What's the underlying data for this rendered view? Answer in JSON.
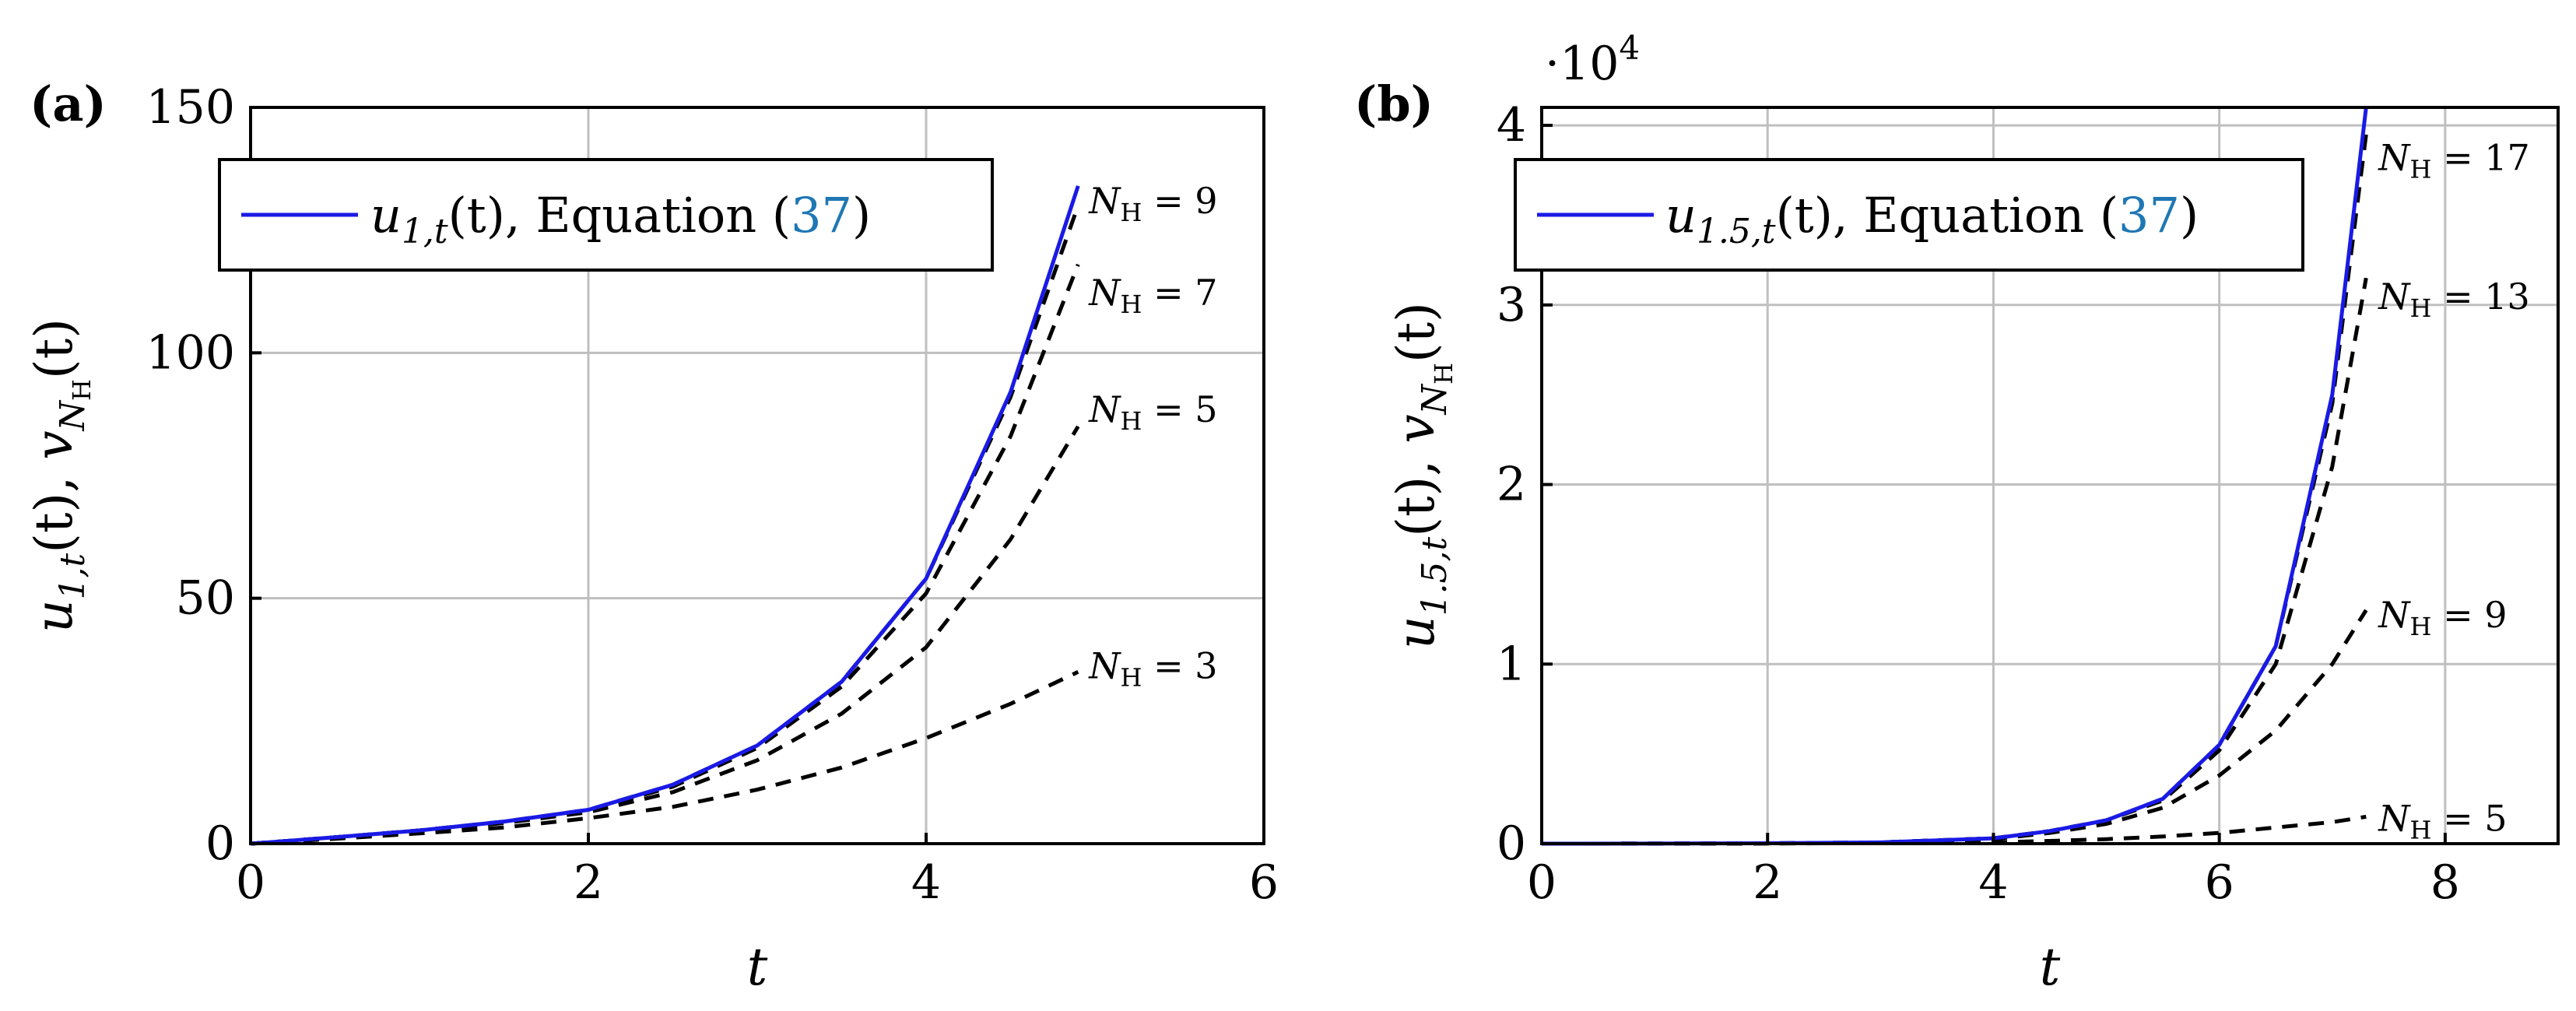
{
  "chart_data": [
    {
      "type": "line",
      "panel_label": "(a)",
      "xlabel": "t",
      "ylabel": "u_{1,t}(t), v_{N_H}(t)",
      "ylabel_main": "u",
      "ylabel_main_sub": "1,t",
      "ylabel_rest": "(t), ",
      "ylabel_second": "v",
      "ylabel_second_sub": "N",
      "ylabel_second_subsub": "H",
      "ylabel_tail": "(t)",
      "xlim": [
        0,
        6
      ],
      "ylim": [
        0,
        150
      ],
      "xticks": [
        "0",
        "2",
        "4",
        "6"
      ],
      "yticks": [
        "0",
        "50",
        "100",
        "150"
      ],
      "grid": true,
      "exponent_label": "",
      "legend": {
        "position": "top-left",
        "entry_main": "u",
        "entry_sub": "1,t",
        "entry_rest": "(t), Equation (",
        "entry_ref": "37",
        "entry_close": ")"
      },
      "series": [
        {
          "name": "u_{1,t}(t), Equation (37)",
          "style": "solid-blue",
          "x": [
            0,
            0.5,
            1,
            1.5,
            2,
            2.5,
            3,
            3.5,
            4,
            4.5,
            4.9
          ],
          "y": [
            0,
            1.3,
            2.7,
            4.5,
            6.9,
            12,
            20,
            33,
            54,
            92,
            134
          ]
        },
        {
          "name": "N_H = 9",
          "style": "dashed",
          "label": "N_H = 9",
          "label_nh": "9",
          "x": [
            0,
            0.5,
            1,
            1.5,
            2,
            2.5,
            3,
            3.5,
            4,
            4.5,
            4.9
          ],
          "y": [
            0,
            1.3,
            2.7,
            4.5,
            6.9,
            12,
            20,
            33,
            54,
            91,
            130
          ]
        },
        {
          "name": "N_H = 7",
          "style": "dashed",
          "label": "N_H = 7",
          "label_nh": "7",
          "x": [
            0,
            0.5,
            1,
            1.5,
            2,
            2.5,
            3,
            3.5,
            4,
            4.5,
            4.9
          ],
          "y": [
            0,
            1.3,
            2.7,
            4.4,
            6.8,
            11.6,
            19.5,
            32,
            51,
            83,
            118
          ]
        },
        {
          "name": "N_H = 5",
          "style": "dashed",
          "label": "N_H = 5",
          "label_nh": "5",
          "x": [
            0,
            0.5,
            1,
            1.5,
            2,
            2.5,
            3,
            3.5,
            4,
            4.5,
            4.9
          ],
          "y": [
            0,
            1.2,
            2.5,
            4.2,
            6.4,
            10.5,
            17,
            26.5,
            40,
            62,
            85
          ]
        },
        {
          "name": "N_H = 3",
          "style": "dashed",
          "label": "N_H = 3",
          "label_nh": "3",
          "x": [
            0,
            0.5,
            1,
            1.5,
            2,
            2.5,
            3,
            3.5,
            4,
            4.5,
            4.9
          ],
          "y": [
            0,
            1.0,
            2.1,
            3.3,
            5.2,
            7.5,
            11,
            15.5,
            21.5,
            28.5,
            35
          ]
        }
      ]
    },
    {
      "type": "line",
      "panel_label": "(b)",
      "xlabel": "t",
      "ylabel": "u_{1.5,t}(t), v_{N_H}(t)",
      "ylabel_main": "u",
      "ylabel_main_sub": "1.5,t",
      "ylabel_rest": "(t), ",
      "ylabel_second": "v",
      "ylabel_second_sub": "N",
      "ylabel_second_subsub": "H",
      "ylabel_tail": "(t)",
      "xlim": [
        0,
        9
      ],
      "ylim": [
        0,
        4.1
      ],
      "xticks": [
        "0",
        "2",
        "4",
        "6",
        "8"
      ],
      "yticks": [
        "0",
        "1",
        "2",
        "3",
        "4"
      ],
      "grid": true,
      "exponent_label": "·10",
      "exponent_power": "4",
      "legend": {
        "position": "top-left",
        "entry_main": "u",
        "entry_sub": "1.5,t",
        "entry_rest": "(t), Equation (",
        "entry_ref": "37",
        "entry_close": ")"
      },
      "series": [
        {
          "name": "u_{1.5,t}(t), Equation (37)",
          "style": "solid-blue",
          "x": [
            0,
            1,
            2,
            3,
            4,
            4.5,
            5,
            5.5,
            6,
            6.5,
            7,
            7.3
          ],
          "y": [
            0,
            0.0005,
            0.002,
            0.007,
            0.03,
            0.07,
            0.13,
            0.25,
            0.55,
            1.1,
            2.5,
            4.1
          ]
        },
        {
          "name": "N_H = 17",
          "style": "dashed",
          "label": "N_H = 17",
          "label_nh": "17",
          "x": [
            0,
            1,
            2,
            3,
            4,
            4.5,
            5,
            5.5,
            6,
            6.5,
            7,
            7.3
          ],
          "y": [
            0,
            0.0005,
            0.002,
            0.007,
            0.03,
            0.07,
            0.13,
            0.25,
            0.55,
            1.1,
            2.45,
            3.95
          ]
        },
        {
          "name": "N_H = 13",
          "style": "dashed",
          "label": "N_H = 13",
          "label_nh": "13",
          "x": [
            0,
            1,
            2,
            3,
            4,
            4.5,
            5,
            5.5,
            6,
            6.5,
            7,
            7.3
          ],
          "y": [
            0,
            0.0005,
            0.002,
            0.007,
            0.03,
            0.07,
            0.13,
            0.24,
            0.52,
            1.0,
            2.1,
            3.15
          ]
        },
        {
          "name": "N_H = 9",
          "style": "dashed",
          "label": "N_H = 9",
          "label_nh": "9",
          "x": [
            0,
            1,
            2,
            3,
            4,
            4.5,
            5,
            5.5,
            6,
            6.5,
            7,
            7.3
          ],
          "y": [
            0,
            0.0004,
            0.0015,
            0.006,
            0.025,
            0.06,
            0.11,
            0.2,
            0.38,
            0.63,
            1.0,
            1.3
          ]
        },
        {
          "name": "N_H = 5",
          "style": "dashed",
          "label": "N_H = 5",
          "label_nh": "5",
          "x": [
            0,
            1,
            2,
            3,
            4,
            4.5,
            5,
            5.5,
            6,
            6.5,
            7,
            7.3
          ],
          "y": [
            0,
            0.0002,
            0.001,
            0.003,
            0.008,
            0.015,
            0.025,
            0.04,
            0.06,
            0.09,
            0.12,
            0.15
          ]
        }
      ]
    }
  ]
}
